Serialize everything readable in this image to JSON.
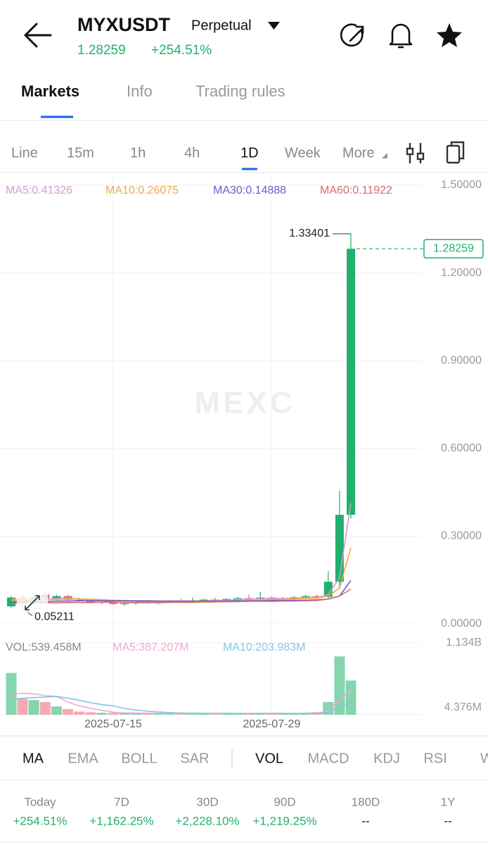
{
  "header": {
    "symbol": "MYXUSDT",
    "contract": "Perpetual",
    "price": "1.28259",
    "change": "+254.51%"
  },
  "tabs": {
    "items": [
      "Markets",
      "Info",
      "Trading rules"
    ],
    "active": 0
  },
  "intervals": {
    "items": [
      "Line",
      "15m",
      "1h",
      "4h",
      "1D",
      "Week",
      "More"
    ],
    "active": 4
  },
  "chart_data": {
    "type": "candlestick",
    "watermark": "MEXC",
    "categories": [
      null,
      null,
      null,
      null,
      null,
      null,
      null,
      null,
      null,
      "2025-07-15",
      null,
      null,
      null,
      null,
      null,
      null,
      null,
      null,
      null,
      null,
      null,
      null,
      null,
      "2025-07-29",
      null,
      null,
      null,
      null,
      null,
      null,
      null
    ],
    "open": [
      0.06,
      0.09,
      0.07,
      0.1,
      0.088,
      0.095,
      0.082,
      0.078,
      0.072,
      0.075,
      0.068,
      0.07,
      0.073,
      0.071,
      0.074,
      0.078,
      0.076,
      0.08,
      0.083,
      0.081,
      0.085,
      0.088,
      0.084,
      0.09,
      0.086,
      0.088,
      0.091,
      0.095,
      0.092,
      0.144,
      0.373
    ],
    "high": [
      0.095,
      0.1,
      0.095,
      0.11,
      0.1,
      0.1,
      0.09,
      0.085,
      0.08,
      0.08,
      0.075,
      0.078,
      0.08,
      0.078,
      0.08,
      0.085,
      0.09,
      0.086,
      0.09,
      0.088,
      0.092,
      0.1,
      0.11,
      0.095,
      0.092,
      0.095,
      0.1,
      0.1,
      0.18,
      0.455,
      1.33401
    ],
    "low": [
      0.055,
      0.05211,
      0.065,
      0.085,
      0.08,
      0.08,
      0.075,
      0.07,
      0.068,
      0.065,
      0.062,
      0.065,
      0.068,
      0.066,
      0.07,
      0.073,
      0.072,
      0.075,
      0.078,
      0.076,
      0.08,
      0.082,
      0.08,
      0.082,
      0.08,
      0.083,
      0.086,
      0.088,
      0.088,
      0.12,
      0.36
    ],
    "close": [
      0.09,
      0.07,
      0.09,
      0.088,
      0.095,
      0.082,
      0.078,
      0.072,
      0.075,
      0.068,
      0.07,
      0.073,
      0.071,
      0.074,
      0.078,
      0.076,
      0.08,
      0.083,
      0.081,
      0.085,
      0.088,
      0.084,
      0.09,
      0.086,
      0.088,
      0.091,
      0.095,
      0.092,
      0.144,
      0.373,
      1.28259
    ],
    "up_color": "#20b26c",
    "down_color": "#f0636f",
    "ylim": [
      0,
      1.5
    ],
    "yticks": [
      {
        "value": 0,
        "label": "0.00000"
      },
      {
        "value": 0.3,
        "label": "0.30000"
      },
      {
        "value": 0.6,
        "label": "0.60000"
      },
      {
        "value": 0.9,
        "label": "0.90000"
      },
      {
        "value": 1.2,
        "label": "1.20000"
      },
      {
        "value": 1.5,
        "label": "1.50000"
      }
    ],
    "grid": true,
    "ma": [
      {
        "label": "MA5:0.41326",
        "color": "#d59ad2",
        "values": [
          0.085,
          0.083,
          0.082,
          0.084,
          0.087,
          0.088,
          0.085,
          0.082,
          0.079,
          0.075,
          0.072,
          0.071,
          0.071,
          0.071,
          0.073,
          0.074,
          0.076,
          0.078,
          0.08,
          0.081,
          0.083,
          0.084,
          0.086,
          0.087,
          0.087,
          0.088,
          0.09,
          0.09,
          0.101,
          0.158,
          0.41326
        ]
      },
      {
        "label": "MA10:0.26075",
        "color": "#e8ad45",
        "values": [
          0.08,
          0.081,
          0.082,
          0.083,
          0.084,
          0.085,
          0.085,
          0.084,
          0.083,
          0.081,
          0.08,
          0.078,
          0.077,
          0.075,
          0.074,
          0.073,
          0.073,
          0.074,
          0.075,
          0.076,
          0.078,
          0.08,
          0.081,
          0.083,
          0.084,
          0.086,
          0.087,
          0.088,
          0.095,
          0.123,
          0.26075
        ]
      },
      {
        "label": "MA30:0.14888",
        "color": "#6f5cc4",
        "values": [
          0.075,
          0.076,
          0.077,
          0.077,
          0.078,
          0.078,
          0.079,
          0.079,
          0.079,
          0.079,
          0.079,
          0.079,
          0.079,
          0.078,
          0.078,
          0.078,
          0.078,
          0.078,
          0.078,
          0.078,
          0.079,
          0.079,
          0.079,
          0.08,
          0.08,
          0.081,
          0.081,
          0.082,
          0.085,
          0.095,
          0.14888
        ]
      },
      {
        "label": "MA60:0.11922",
        "color": "#d66a78",
        "values": [
          0.07,
          0.071,
          0.071,
          0.072,
          0.072,
          0.073,
          0.073,
          0.073,
          0.074,
          0.074,
          0.074,
          0.074,
          0.075,
          0.075,
          0.075,
          0.075,
          0.075,
          0.076,
          0.076,
          0.076,
          0.076,
          0.077,
          0.077,
          0.077,
          0.078,
          0.078,
          0.079,
          0.08,
          0.085,
          0.095,
          0.11922
        ]
      }
    ],
    "volume": [
      660000000.0,
      250000000.0,
      230000000.0,
      200000000.0,
      130000000.0,
      90000000.0,
      50000000.0,
      40000000.0,
      30000000.0,
      30000000.0,
      25000000.0,
      25000000.0,
      20000000.0,
      20000000.0,
      20000000.0,
      20000000.0,
      20000000.0,
      20000000.0,
      20000000.0,
      20000000.0,
      20000000.0,
      20000000.0,
      25000000.0,
      20000000.0,
      20000000.0,
      20000000.0,
      25000000.0,
      40000000.0,
      200000000.0,
      920000000.0,
      539458000.0
    ],
    "volume_label": "VOL:539.458M",
    "vlim": [
      0,
      1134000000
    ],
    "vticks": [
      {
        "value": 4376000,
        "label": "4.376M"
      },
      {
        "value": 1134000000,
        "label": "1.134B"
      }
    ],
    "volume_ma": [
      {
        "label": "MA5:387.207M",
        "color": "#f0a7d3",
        "values": [
          320000000.0,
          340000000.0,
          330000000.0,
          300000000.0,
          290000000.0,
          200000000.0,
          140000000.0,
          100000000.0,
          70000000.0,
          40000000.0,
          30000000.0,
          26000000.0,
          25000000.0,
          23000000.0,
          22000000.0,
          21000000.0,
          20000000.0,
          20000000.0,
          20000000.0,
          20000000.0,
          20000000.0,
          20000000.0,
          21000000.0,
          21000000.0,
          21000000.0,
          21000000.0,
          22000000.0,
          26000000.0,
          62000000.0,
          240000000.0,
          387207000.0
        ]
      },
      {
        "label": "MA10:203.983M",
        "color": "#84c6e0",
        "values": [
          240000000.0,
          260000000.0,
          270000000.0,
          280000000.0,
          290000000.0,
          260000000.0,
          230000000.0,
          190000000.0,
          160000000.0,
          140000000.0,
          100000000.0,
          75000000.0,
          58000000.0,
          45000000.0,
          35000000.0,
          28000000.0,
          24000000.0,
          22000000.0,
          21000000.0,
          21000000.0,
          20000000.0,
          20000000.0,
          20000000.0,
          20000000.0,
          20000000.0,
          20000000.0,
          21000000.0,
          23000000.0,
          41000000.0,
          130000000.0,
          203983000.0
        ]
      }
    ]
  },
  "indicators": {
    "items": [
      "MA",
      "EMA",
      "BOLL",
      "SAR",
      "VOL",
      "MACD",
      "KDJ",
      "RSI",
      "WR"
    ],
    "active": [
      0,
      4
    ]
  },
  "performance": {
    "labels": [
      "Today",
      "7D",
      "30D",
      "90D",
      "180D",
      "1Y"
    ],
    "values": [
      "+254.51%",
      "+1,162.25%",
      "+2,228.10%",
      "+1,219.25%",
      "--",
      "--"
    ]
  }
}
